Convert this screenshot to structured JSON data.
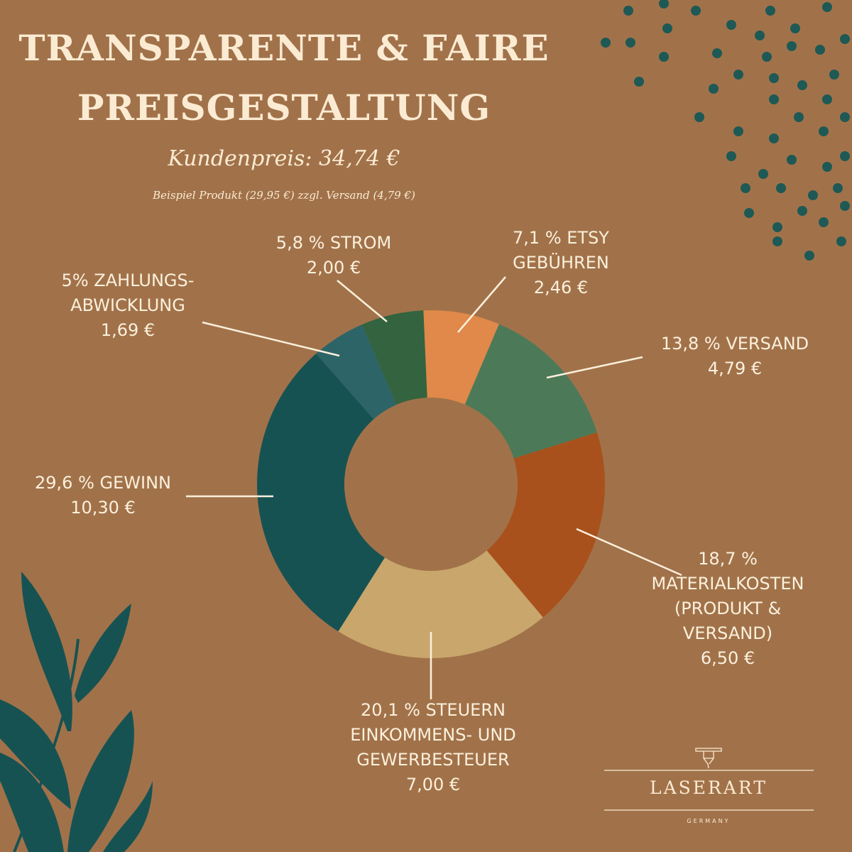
{
  "header": {
    "title_line1": "TRANSPARENTE & FAIRE",
    "title_line2": "PREISGESTALTUNG",
    "customer_price": "Kundenpreis:  34,74  €",
    "example_note": "Beispiel Produkt (29,95 €) zzgl. Versand (4,79 €)"
  },
  "chart_data": {
    "type": "pie",
    "donut": true,
    "total": "34,74 €",
    "slices": [
      {
        "name": "ETSY GEBÜHREN",
        "percent": 7.1,
        "value": 2.46,
        "label": "7,1 % ETSY\nGEBÜHREN\n2,46 €",
        "color": "#E0894A"
      },
      {
        "name": "VERSAND",
        "percent": 13.8,
        "value": 4.79,
        "label": "13,8 % VERSAND\n4,79 €",
        "color": "#4C7A59"
      },
      {
        "name": "MATERIALKOSTEN (PRODUKT & VERSAND)",
        "percent": 18.7,
        "value": 6.5,
        "label": "18,7 %\nMATERIALKOSTEN\n(PRODUKT &\nVERSAND)\n6,50 €",
        "color": "#A9511C"
      },
      {
        "name": "STEUERN EINKOMMENS- UND GEWERBESTEUER",
        "percent": 20.1,
        "value": 7.0,
        "label": "20,1 % STEUERN\nEINKOMMENS- UND\nGEWERBESTEUER\n7,00 €",
        "color": "#C9A66C"
      },
      {
        "name": "GEWINN",
        "percent": 29.6,
        "value": 10.3,
        "label": "29,6 % GEWINN\n10,30 €",
        "color": "#175253"
      },
      {
        "name": "ZAHLUNGSABWICKLUNG",
        "percent": 5,
        "value": 1.69,
        "label": "5% ZAHLUNGS-\nABWICKLUNG\n1,69 €",
        "color": "#2D6467"
      },
      {
        "name": "STROM",
        "percent": 5.8,
        "value": 2.0,
        "label": "5,8 % STROM\n2,00 €",
        "color": "#33633F"
      }
    ]
  },
  "colors": {
    "background": "#A1724A",
    "dots": "#1E5955",
    "leaves": "#175253",
    "text": "#FBF0DC"
  },
  "logo": {
    "name": "LASERART",
    "subtitle": "GERMANY"
  }
}
